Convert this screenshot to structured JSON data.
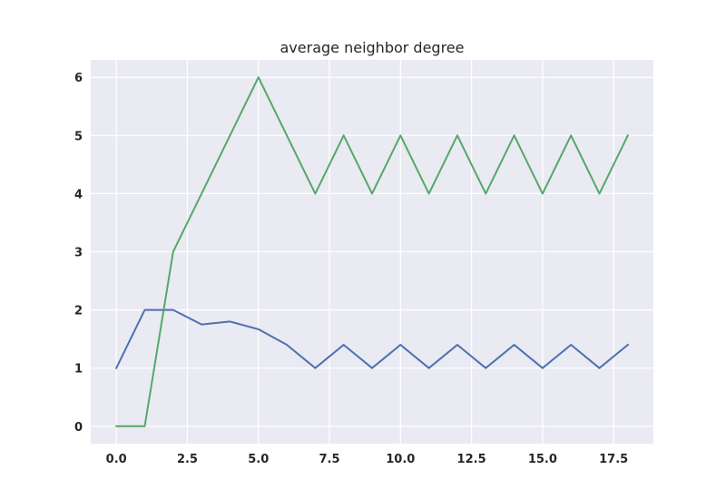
{
  "chart_data": {
    "type": "line",
    "title": "average neighbor degree",
    "xlabel": "",
    "ylabel": "",
    "x": [
      0,
      1,
      2,
      3,
      4,
      5,
      6,
      7,
      8,
      9,
      10,
      11,
      12,
      13,
      14,
      15,
      16,
      17,
      18
    ],
    "series": [
      {
        "color": "#4c72b0",
        "values": [
          1,
          2,
          2,
          1.75,
          1.8,
          1.667,
          1.4,
          1,
          1.4,
          1,
          1.4,
          1,
          1.4,
          1,
          1.4,
          1,
          1.4,
          1,
          1.4
        ]
      },
      {
        "color": "#55a868",
        "values": [
          0,
          0,
          3,
          4,
          5,
          6,
          5,
          4,
          5,
          4,
          5,
          4,
          5,
          4,
          5,
          4,
          5,
          4,
          5
        ]
      }
    ],
    "xlim": [
      -0.9,
      18.9
    ],
    "ylim": [
      -0.3,
      6.3
    ],
    "xticks": [
      0,
      2.5,
      5,
      7.5,
      10,
      12.5,
      15,
      17.5
    ],
    "xtick_labels": [
      "0.0",
      "2.5",
      "5.0",
      "7.5",
      "10.0",
      "12.5",
      "15.0",
      "17.5"
    ],
    "yticks": [
      0,
      1,
      2,
      3,
      4,
      5,
      6
    ],
    "ytick_labels": [
      "0",
      "1",
      "2",
      "3",
      "4",
      "5",
      "6"
    ],
    "grid": true,
    "style": {
      "background": "#eaeaf2",
      "grid_color": "#ffffff"
    }
  }
}
